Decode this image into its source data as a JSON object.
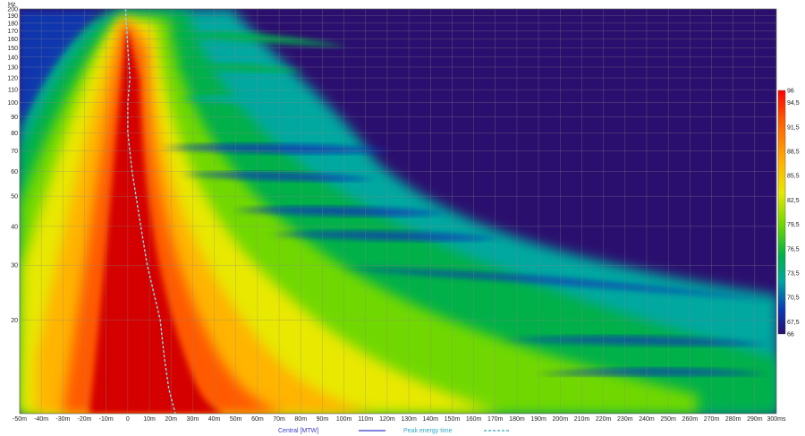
{
  "chart_data": {
    "type": "heatmap",
    "title": "",
    "xlabel": "",
    "ylabel": "",
    "y_unit": "Hz",
    "y_scale": "log",
    "xlim": [
      -50,
      300
    ],
    "ylim": [
      10,
      200
    ],
    "x_ticks": [
      "-50m",
      "-40m",
      "-30m",
      "-20m",
      "-10m",
      "0",
      "10m",
      "20m",
      "30m",
      "40m",
      "50m",
      "60m",
      "70m",
      "80m",
      "90m",
      "100m",
      "110m",
      "120m",
      "130m",
      "140m",
      "150m",
      "160m",
      "170m",
      "180m",
      "190m",
      "200m",
      "210m",
      "220m",
      "230m",
      "240m",
      "250m",
      "260m",
      "270m",
      "280m",
      "290m",
      "300ms"
    ],
    "y_ticks": [
      "200",
      "190",
      "180",
      "170",
      "160",
      "150",
      "140",
      "130",
      "120",
      "110",
      "100",
      "90",
      "80",
      "70",
      "60",
      "50",
      "40",
      "30",
      "20"
    ],
    "y_tick_values": [
      200,
      190,
      180,
      170,
      160,
      150,
      140,
      130,
      120,
      110,
      100,
      90,
      80,
      70,
      60,
      50,
      40,
      30,
      20
    ],
    "colorbar": {
      "min": 66,
      "max": 96,
      "labels": [
        "96",
        "94,5",
        "91,5",
        "88,5",
        "85,5",
        "82,5",
        "79,5",
        "76,5",
        "73,5",
        "70,5",
        "67,5",
        "66"
      ],
      "values": [
        96,
        94.5,
        91.5,
        88.5,
        85.5,
        82.5,
        79.5,
        76.5,
        73.5,
        70.5,
        67.5,
        66
      ]
    },
    "peak_energy_time": {
      "name": "Peak energy time",
      "freq": [
        200,
        150,
        120,
        100,
        80,
        60,
        40,
        30,
        20,
        15,
        12,
        10
      ],
      "time_ms": [
        -1,
        0,
        1,
        0,
        0,
        2,
        6,
        9,
        15,
        17,
        19,
        22
      ]
    },
    "legend": [
      {
        "name": "Central [MTW]",
        "color": "#3b3bcc",
        "style": "solid"
      },
      {
        "name": "Peak energy time",
        "color": "#2fa8c8",
        "style": "dashed"
      }
    ],
    "legend_position": "bottom",
    "grid": true
  }
}
